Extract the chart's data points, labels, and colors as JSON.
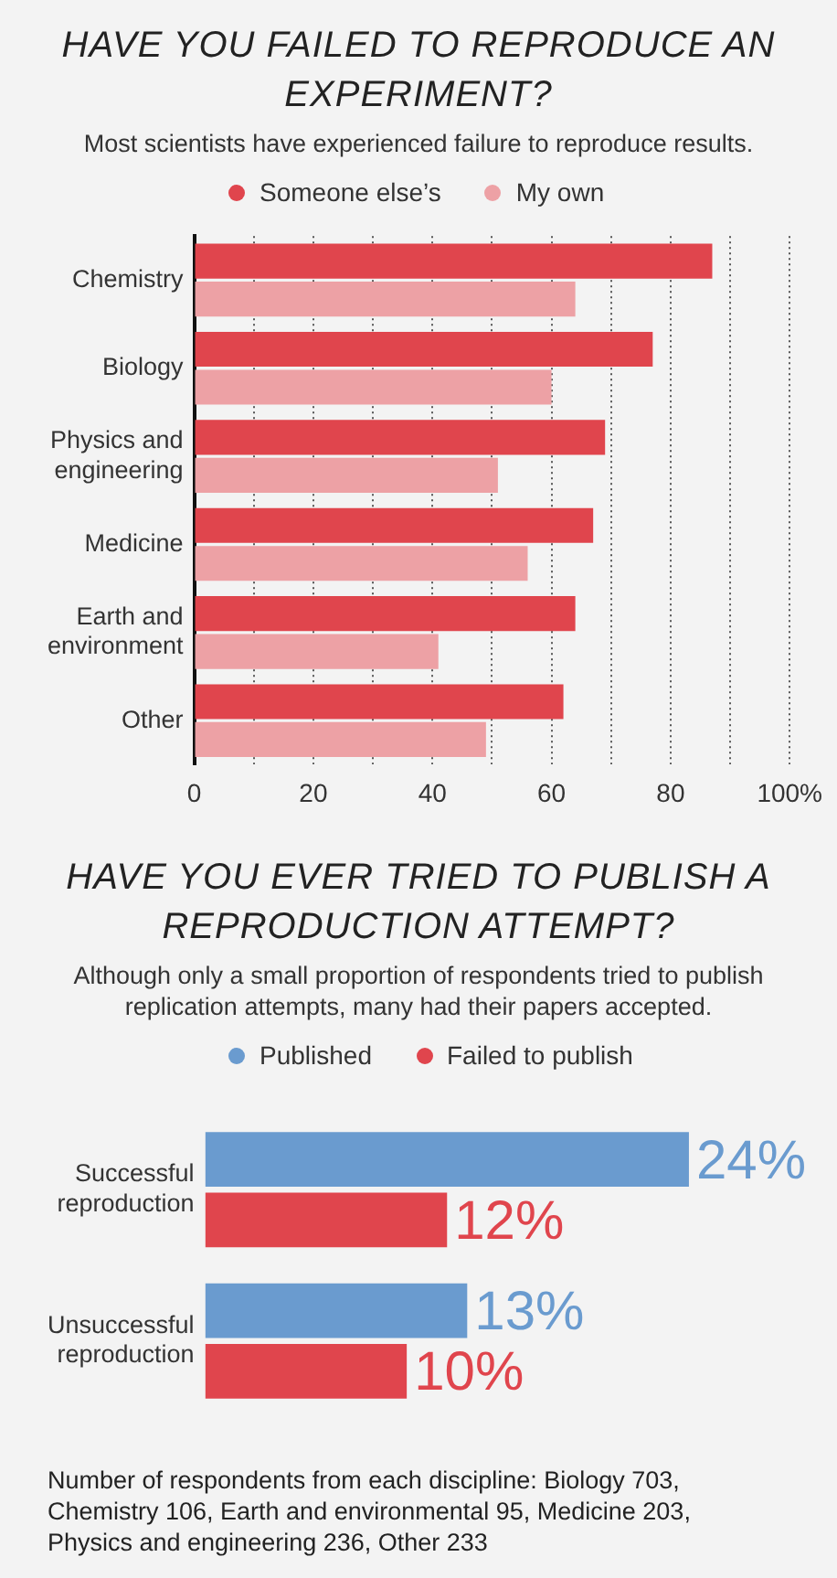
{
  "chart_data": [
    {
      "type": "bar",
      "orientation": "horizontal",
      "title": "HAVE YOU FAILED TO REPRODUCE AN EXPERIMENT?",
      "subtitle": "Most scientists have experienced failure to reproduce results.",
      "categories": [
        "Chemistry",
        "Biology",
        "Physics and engineering",
        "Medicine",
        "Earth and environment",
        "Other"
      ],
      "series": [
        {
          "name": "Someone else’s",
          "color": "#e0454d",
          "values": [
            87,
            77,
            69,
            67,
            64,
            62
          ]
        },
        {
          "name": "My own",
          "color": "#eda1a5",
          "values": [
            64,
            60,
            51,
            56,
            41,
            49
          ]
        }
      ],
      "xlim": [
        0,
        100
      ],
      "xticks": [
        0,
        {
          "value": 10,
          "label": null
        },
        20,
        {
          "value": 30,
          "label": null
        },
        40,
        {
          "value": 50,
          "label": null
        },
        60,
        {
          "value": 70,
          "label": null
        },
        80,
        {
          "value": 90,
          "label": null
        },
        {
          "value": 100,
          "label": "100%"
        }
      ],
      "grid": "x",
      "legend": "top"
    },
    {
      "type": "bar",
      "orientation": "horizontal",
      "title": "HAVE YOU EVER TRIED TO PUBLISH A REPRODUCTION ATTEMPT?",
      "subtitle": "Although only a small proportion of respondents tried to publish replication attempts, many had their papers accepted.",
      "categories": [
        "Successful reproduction",
        "Unsuccessful reproduction"
      ],
      "series": [
        {
          "name": "Published",
          "color": "#6a9bcf",
          "values": [
            24,
            13
          ],
          "value_labels": [
            "24%",
            "13%"
          ]
        },
        {
          "name": "Failed to publish",
          "color": "#e0454d",
          "values": [
            12,
            10
          ],
          "value_labels": [
            "12%",
            "10%"
          ]
        }
      ],
      "tick_labels": "y",
      "legend": "top",
      "annotations": [
        "Number of respondents from each discipline: Biology 703, Chemistry 106, Earth and environmental 95, Medicine 203, Physics and engineering 236, Other 233"
      ]
    }
  ]
}
